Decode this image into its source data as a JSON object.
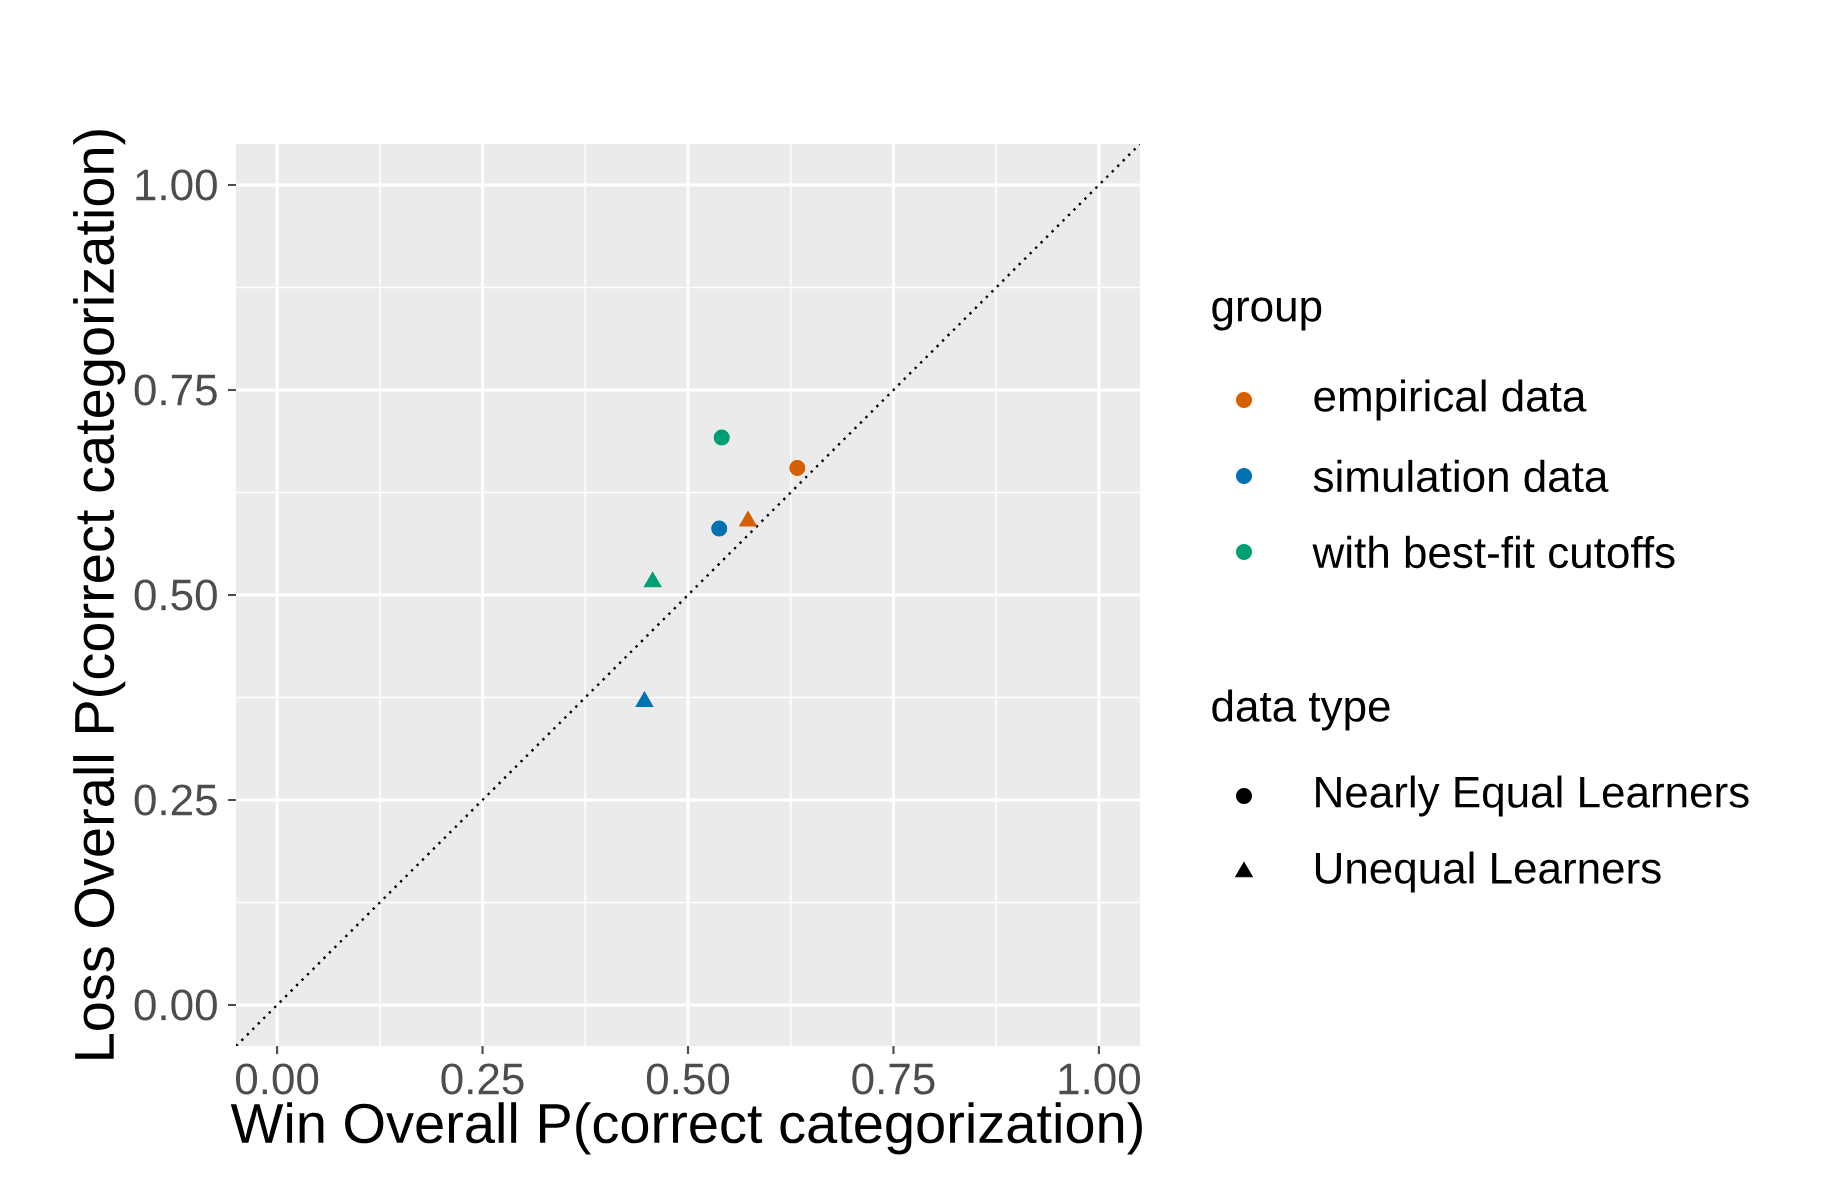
{
  "chart_data": {
    "type": "scatter",
    "xlabel": "Win Overall P(correct categorization)",
    "ylabel": "Loss Overall P(correct categorization)",
    "xlim": [
      -0.05,
      1.05
    ],
    "ylim": [
      -0.05,
      1.05
    ],
    "xticks": [
      {
        "value": 0,
        "label": "0.00"
      },
      {
        "value": 0.25,
        "label": "0.25"
      },
      {
        "value": 0.5,
        "label": "0.50"
      },
      {
        "value": 0.75,
        "label": "0.75"
      },
      {
        "value": 1,
        "label": "1.00"
      }
    ],
    "yticks": [
      {
        "value": 0,
        "label": "0.00"
      },
      {
        "value": 0.25,
        "label": "0.25"
      },
      {
        "value": 0.5,
        "label": "0.50"
      },
      {
        "value": 0.75,
        "label": "0.75"
      },
      {
        "value": 1,
        "label": "1.00"
      }
    ],
    "grid": true,
    "legend": "right",
    "legend_title": [
      "group",
      "data type"
    ],
    "series": [
      {
        "name": "empirical data",
        "color": "#d55e00",
        "marker": "circle",
        "x": [
          0.633
        ],
        "values": [
          0.655
        ]
      },
      {
        "name": "simulation data",
        "color": "#0072b2",
        "marker": "circle",
        "x": [
          0.538
        ],
        "values": [
          0.581
        ]
      },
      {
        "name": "with best-fit cutoffs",
        "color": "#009e73",
        "marker": "circle",
        "x": [
          0.541
        ],
        "values": [
          0.692
        ]
      },
      {
        "color": "#d55e00",
        "marker": "triangle",
        "x": [
          0.573
        ],
        "values": [
          0.59
        ]
      },
      {
        "color": "#0072b2",
        "marker": "triangle",
        "x": [
          0.447
        ],
        "values": [
          0.37
        ]
      },
      {
        "color": "#009e73",
        "marker": "triangle",
        "x": [
          0.457
        ],
        "values": [
          0.516
        ]
      },
      {
        "name": "Nearly Equal Learners",
        "color": "#000000",
        "marker": "circle"
      },
      {
        "name": "Unequal Learners",
        "color": "#000000",
        "marker": "triangle"
      },
      {
        "type": "line",
        "color": "#000000",
        "line_style": "dotted",
        "marker": "none",
        "x": [
          -0.05,
          1.05
        ],
        "values": [
          -0.05,
          1.05
        ]
      }
    ]
  }
}
